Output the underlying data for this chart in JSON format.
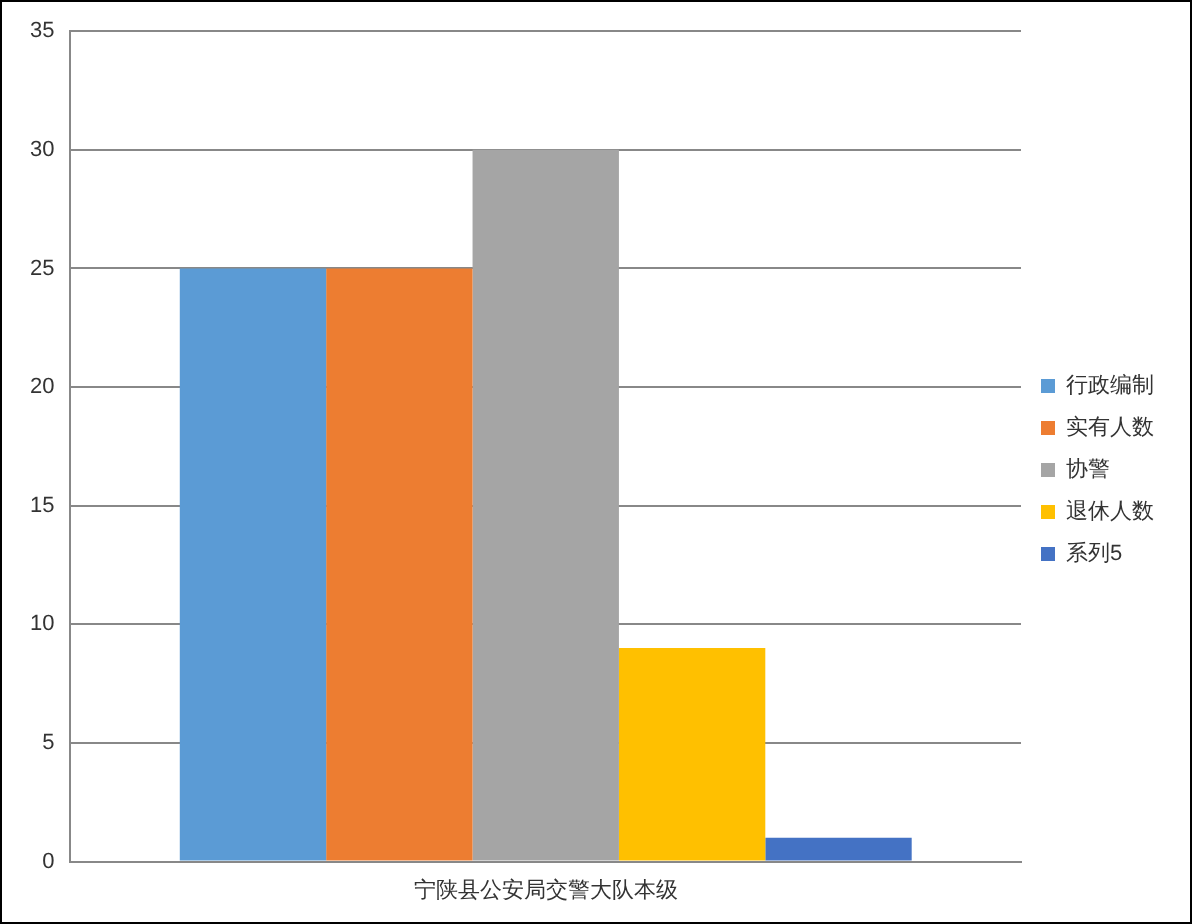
{
  "chart_data": {
    "type": "bar",
    "categories": [
      "宁陕县公安局交警大队本级"
    ],
    "series": [
      {
        "name": "行政编制",
        "color": "#5b9bd5",
        "values": [
          25
        ]
      },
      {
        "name": "实有人数",
        "color": "#ed7d31",
        "values": [
          25
        ]
      },
      {
        "name": "协警",
        "color": "#a5a5a5",
        "values": [
          30
        ]
      },
      {
        "name": "退休人数",
        "color": "#ffc000",
        "values": [
          9
        ]
      },
      {
        "name": "系列5",
        "color": "#4472c4",
        "values": [
          1
        ]
      }
    ],
    "ylim": [
      0,
      35
    ],
    "yticks": [
      0,
      5,
      10,
      15,
      20,
      25,
      30,
      35
    ],
    "grid": "y",
    "legend": "right"
  }
}
